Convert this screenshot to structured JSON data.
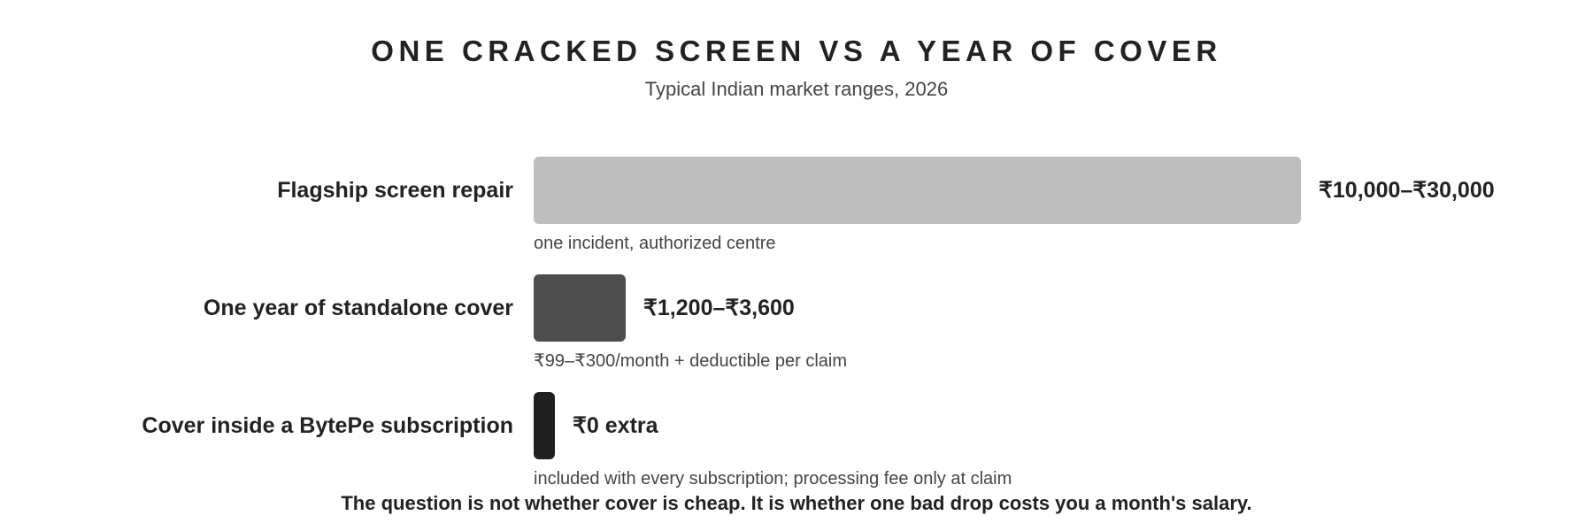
{
  "chart_data": {
    "type": "bar",
    "orientation": "horizontal",
    "title": "ONE CRACKED SCREEN VS A YEAR OF COVER",
    "subtitle": "Typical Indian market ranges, 2026",
    "unit": "₹",
    "categories": [
      "Flagship screen repair",
      "One year of standalone cover",
      "Cover inside a BytePe subscription"
    ],
    "values": [
      30000,
      3600,
      0
    ],
    "value_labels": [
      "₹10,000–₹30,000",
      "₹1,200–₹3,600",
      "₹0 extra"
    ],
    "notes": [
      "one incident, authorized centre",
      "₹99–₹300/month + deductible per claim",
      "included with every subscription; processing fee only at claim"
    ],
    "colors": [
      "#bdbdbd",
      "#4d4d4d",
      "#1f1f1f"
    ],
    "footer": "The question is not whether cover is cheap. It is whether one bad drop costs you a month's salary.",
    "xlim": [
      0,
      30000
    ],
    "grid": false,
    "legend": "none"
  }
}
